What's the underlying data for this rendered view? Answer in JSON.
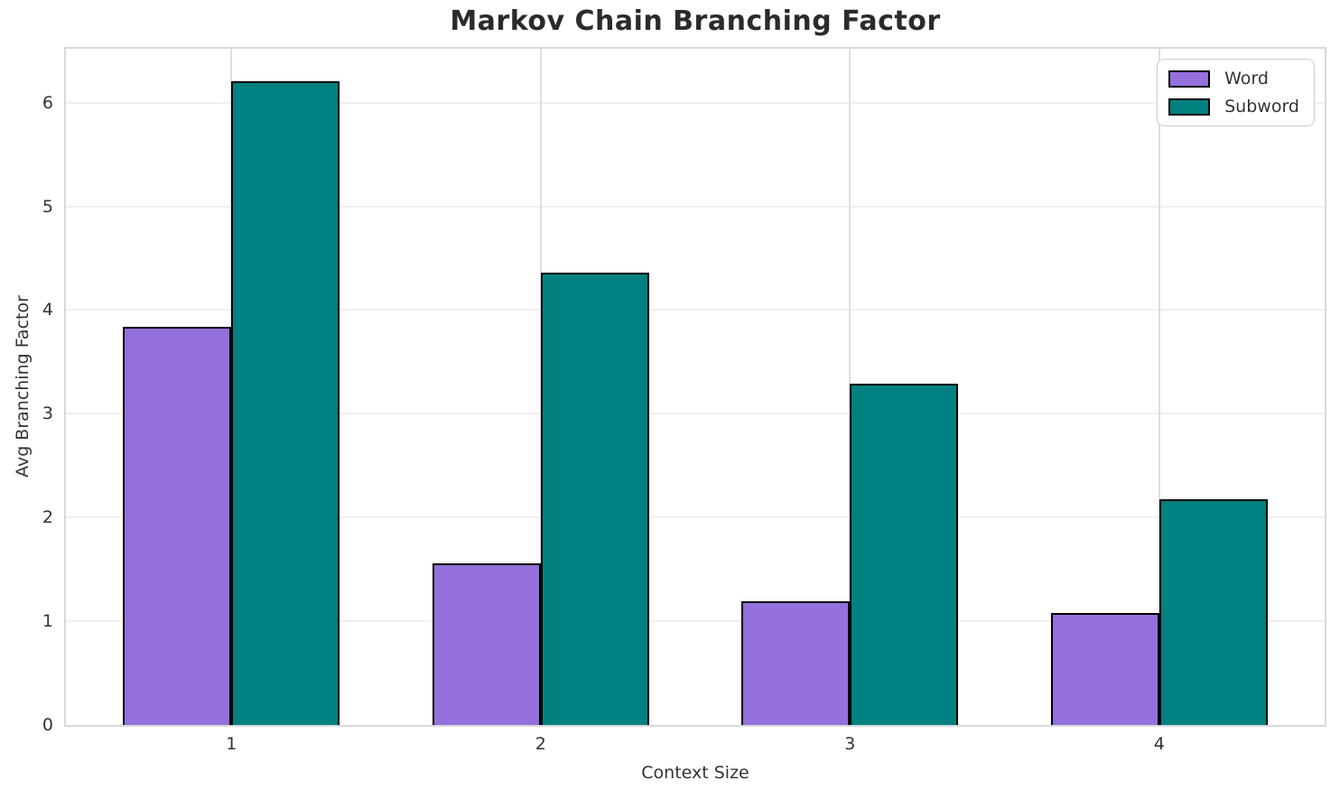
{
  "chart_data": {
    "type": "bar",
    "title": "Markov Chain Branching Factor",
    "xlabel": "Context Size",
    "ylabel": "Avg Branching Factor",
    "categories": [
      "1",
      "2",
      "3",
      "4"
    ],
    "series": [
      {
        "name": "Word",
        "color": "#9370DB",
        "values": [
          3.84,
          1.56,
          1.19,
          1.08
        ]
      },
      {
        "name": "Subword",
        "color": "#008080",
        "values": [
          6.21,
          4.36,
          3.29,
          2.18
        ]
      }
    ],
    "yticks": [
      "0",
      "1",
      "2",
      "3",
      "4",
      "5",
      "6"
    ],
    "ylim": [
      0,
      6.52
    ],
    "xlim": [
      -0.535,
      3.535
    ],
    "bar_width": 0.35,
    "bar_edge_color": "#000000",
    "grid": true,
    "legend_position": "upper right",
    "legend_entries": [
      "Word",
      "Subword"
    ]
  },
  "colors": {
    "background": "#ffffff",
    "title_text": "#2b2b2b",
    "tick_text": "#333333",
    "spine": "#d9d9d9",
    "gridline_h": "#efefef",
    "gridline_v": "#dedede",
    "word_fill": "#9370DB",
    "subword_fill": "#008080",
    "bar_edge": "#000000",
    "legend_border": "#cccccc"
  }
}
